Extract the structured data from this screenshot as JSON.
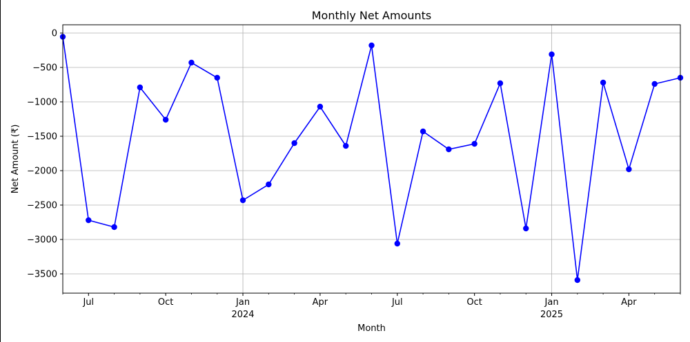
{
  "chart_data": {
    "type": "line",
    "title": "Monthly Net Amounts",
    "xlabel": "Month",
    "ylabel": "Net Amount (₹)",
    "x": [
      "2023-06",
      "2023-07",
      "2023-08",
      "2023-09",
      "2023-10",
      "2023-11",
      "2023-12",
      "2024-01",
      "2024-02",
      "2024-03",
      "2024-04",
      "2024-05",
      "2024-06",
      "2024-07",
      "2024-08",
      "2024-09",
      "2024-10",
      "2024-11",
      "2024-12",
      "2025-01",
      "2025-02",
      "2025-03",
      "2025-04",
      "2025-05",
      "2025-06"
    ],
    "series": [
      {
        "values": [
          -55,
          -2720,
          -2820,
          -790,
          -1260,
          -430,
          -650,
          -2430,
          -2200,
          -1600,
          -1070,
          -1640,
          -180,
          -3060,
          -1430,
          -1690,
          -1610,
          -730,
          -2840,
          -310,
          -3590,
          -720,
          -1980,
          -740,
          -650
        ],
        "color": "#0000ff",
        "marker": "circle"
      }
    ],
    "ylim": [
      -3780,
      120
    ],
    "yticks": [
      0,
      -500,
      -1000,
      -1500,
      -2000,
      -2500,
      -3000,
      -3500
    ],
    "xticks": [
      {
        "x": "2023-07",
        "label": "Jul",
        "sub": ""
      },
      {
        "x": "2023-10",
        "label": "Oct",
        "sub": ""
      },
      {
        "x": "2024-01",
        "label": "Jan",
        "sub": "2024"
      },
      {
        "x": "2024-04",
        "label": "Apr",
        "sub": ""
      },
      {
        "x": "2024-07",
        "label": "Jul",
        "sub": ""
      },
      {
        "x": "2024-10",
        "label": "Oct",
        "sub": ""
      },
      {
        "x": "2025-01",
        "label": "Jan",
        "sub": "2025"
      },
      {
        "x": "2025-04",
        "label": "Apr",
        "sub": ""
      }
    ],
    "grid": true,
    "vertical_grid_at": [
      "2024-01",
      "2025-01"
    ]
  }
}
